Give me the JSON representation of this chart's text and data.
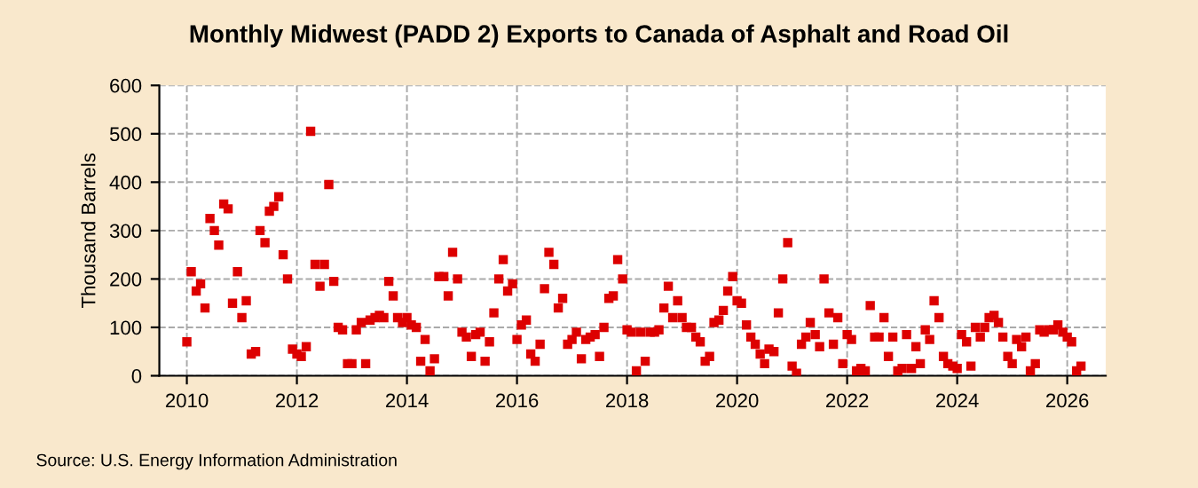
{
  "chart_data": {
    "type": "scatter",
    "title": "Monthly Midwest (PADD 2) Exports to Canada of Asphalt and Road Oil",
    "ylabel": "Thousand Barrels",
    "x": [
      2010.0,
      2010.08,
      2010.17,
      2010.25,
      2010.33,
      2010.42,
      2010.5,
      2010.58,
      2010.67,
      2010.75,
      2010.83,
      2010.92,
      2011.0,
      2011.08,
      2011.17,
      2011.25,
      2011.33,
      2011.42,
      2011.5,
      2011.58,
      2011.67,
      2011.75,
      2011.83,
      2011.92,
      2012.0,
      2012.08,
      2012.17,
      2012.25,
      2012.33,
      2012.42,
      2012.5,
      2012.58,
      2012.67,
      2012.75,
      2012.83,
      2012.92,
      2013.0,
      2013.08,
      2013.17,
      2013.25,
      2013.33,
      2013.42,
      2013.5,
      2013.58,
      2013.67,
      2013.75,
      2013.83,
      2013.92,
      2014.0,
      2014.08,
      2014.17,
      2014.25,
      2014.33,
      2014.42,
      2014.5,
      2014.58,
      2014.67,
      2014.75,
      2014.83,
      2014.92,
      2015.0,
      2015.08,
      2015.17,
      2015.25,
      2015.33,
      2015.42,
      2015.5,
      2015.58,
      2015.67,
      2015.75,
      2015.83,
      2015.92,
      2016.0,
      2016.08,
      2016.17,
      2016.25,
      2016.33,
      2016.42,
      2016.5,
      2016.58,
      2016.67,
      2016.75,
      2016.83,
      2016.92,
      2017.0,
      2017.08,
      2017.17,
      2017.25,
      2017.33,
      2017.42,
      2017.5,
      2017.58,
      2017.67,
      2017.75,
      2017.83,
      2017.92,
      2018.0,
      2018.08,
      2018.17,
      2018.25,
      2018.33,
      2018.42,
      2018.5,
      2018.58,
      2018.67,
      2018.75,
      2018.83,
      2018.92,
      2019.0,
      2019.08,
      2019.17,
      2019.25,
      2019.33,
      2019.42,
      2019.5,
      2019.58,
      2019.67,
      2019.75,
      2019.83,
      2019.92,
      2020.0,
      2020.08,
      2020.17,
      2020.25,
      2020.33,
      2020.42,
      2020.5,
      2020.58,
      2020.67,
      2020.75,
      2020.83,
      2020.92,
      2021.0,
      2021.08,
      2021.17,
      2021.25,
      2021.33,
      2021.42,
      2021.5,
      2021.58,
      2021.67,
      2021.75,
      2021.83,
      2021.92,
      2022.0,
      2022.08,
      2022.17,
      2022.25,
      2022.33,
      2022.42,
      2022.5,
      2022.58,
      2022.67,
      2022.75,
      2022.83,
      2022.92,
      2023.0,
      2023.08,
      2023.17,
      2023.25,
      2023.33,
      2023.42,
      2023.5,
      2023.58,
      2023.67,
      2023.75,
      2023.83,
      2023.92,
      2024.0,
      2024.08,
      2024.17,
      2024.25,
      2024.33,
      2024.42,
      2024.5,
      2024.58,
      2024.67,
      2024.75,
      2024.83,
      2024.92,
      2025.0,
      2025.08,
      2025.17,
      2025.25,
      2025.33,
      2025.42,
      2025.5,
      2025.58,
      2025.67,
      2025.75,
      2025.83,
      2025.92,
      2026.0,
      2026.08,
      2026.17,
      2026.25
    ],
    "series": [
      {
        "color": "#dd0000",
        "values": [
          70,
          215,
          175,
          190,
          140,
          325,
          300,
          270,
          355,
          345,
          150,
          215,
          120,
          155,
          45,
          50,
          300,
          275,
          340,
          350,
          370,
          250,
          200,
          55,
          45,
          40,
          60,
          505,
          230,
          185,
          230,
          395,
          195,
          100,
          95,
          25,
          25,
          95,
          110,
          25,
          115,
          120,
          125,
          120,
          195,
          165,
          120,
          110,
          120,
          105,
          100,
          30,
          75,
          10,
          35,
          205,
          205,
          165,
          255,
          200,
          90,
          80,
          40,
          85,
          90,
          30,
          70,
          130,
          200,
          240,
          175,
          190,
          75,
          105,
          115,
          45,
          30,
          65,
          180,
          255,
          230,
          140,
          160,
          65,
          75,
          90,
          35,
          75,
          80,
          85,
          40,
          100,
          160,
          165,
          240,
          200,
          95,
          90,
          10,
          90,
          30,
          90,
          90,
          95,
          140,
          185,
          120,
          155,
          120,
          100,
          100,
          80,
          70,
          30,
          40,
          110,
          115,
          135,
          175,
          205,
          155,
          150,
          105,
          80,
          65,
          45,
          25,
          55,
          50,
          130,
          200,
          275,
          20,
          5,
          65,
          80,
          110,
          85,
          60,
          200,
          130,
          65,
          120,
          25,
          85,
          75,
          10,
          15,
          10,
          145,
          80,
          80,
          120,
          40,
          80,
          10,
          15,
          85,
          15,
          60,
          25,
          95,
          75,
          155,
          120,
          40,
          25,
          20,
          15,
          85,
          70,
          20,
          100,
          80,
          100,
          120,
          125,
          110,
          80,
          40,
          25,
          75,
          60,
          80,
          10,
          25,
          95,
          90,
          95,
          95,
          105,
          90,
          80,
          70,
          10,
          20
        ]
      }
    ],
    "xlim": [
      2009.5,
      2026.7
    ],
    "ylim": [
      0,
      600
    ],
    "xticks": [
      2010,
      2012,
      2014,
      2016,
      2018,
      2020,
      2022,
      2024,
      2026
    ],
    "yticks": [
      0,
      100,
      200,
      300,
      400,
      500,
      600
    ],
    "grid": true,
    "marker": "square",
    "annotations": [
      "Source: U.S. Energy Information Administration"
    ]
  }
}
